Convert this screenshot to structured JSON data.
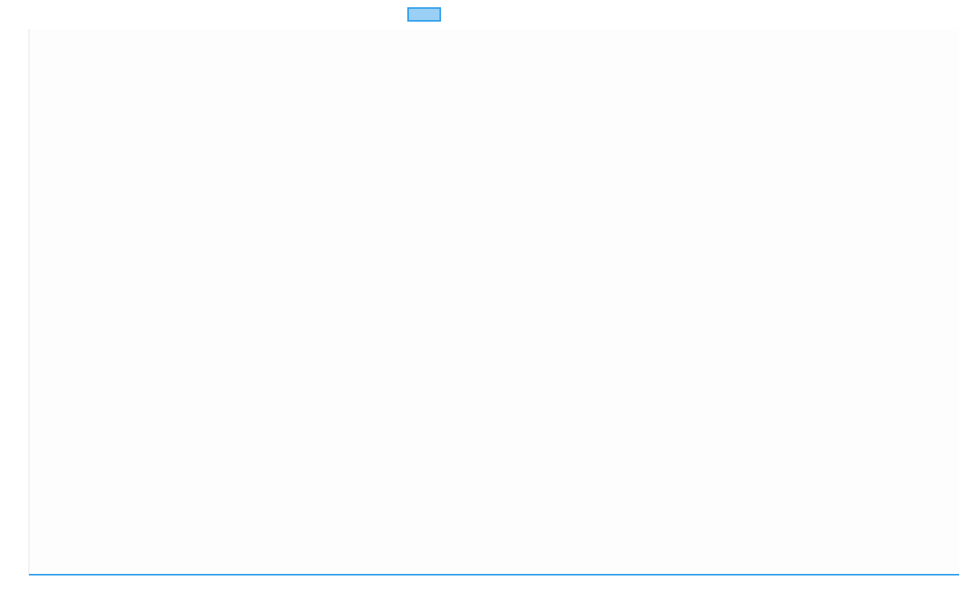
{
  "chart_data": {
    "type": "line",
    "title": "",
    "xlabel": "",
    "ylabel": "",
    "legend": {
      "placement": "top",
      "entries": [
        {
          "label": ""
        }
      ]
    },
    "grid": false,
    "series": [
      {
        "values": [],
        "line_position": "axis-minimum"
      }
    ],
    "colors": {
      "series_border": "#36a2eb",
      "series_fill": "#9ad0f5",
      "axis": "#e5e5e5"
    }
  }
}
